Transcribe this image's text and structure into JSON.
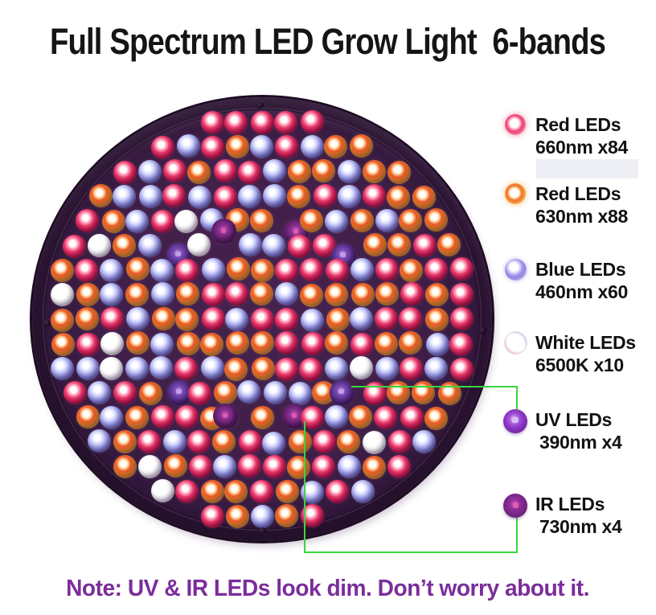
{
  "title": "Full Spectrum LED Grow Light  6-bands",
  "note": "Note: UV & IR LEDs look dim. Don’t worry about it.",
  "note_color": "#7b2d9b",
  "connector_color": "#3cd43c",
  "panel": {
    "description": "round LED grow light panel",
    "body_color": "#3a1c42"
  },
  "legend": {
    "items": [
      {
        "id": "red660",
        "label": "Red LEDs",
        "detail": "660nm x84",
        "wavelength": "660nm",
        "count": 84,
        "color": "#e8235c"
      },
      {
        "id": "red630",
        "label": "Red LEDs",
        "detail": "630nm x88",
        "wavelength": "630nm",
        "count": 88,
        "color": "#f0912e"
      },
      {
        "id": "blue",
        "label": "Blue LEDs",
        "detail": "460nm x60",
        "wavelength": "460nm",
        "count": 60,
        "color": "#8d90e0"
      },
      {
        "id": "white",
        "label": "White LEDs",
        "detail": "6500K x10",
        "wavelength": "6500K",
        "count": 10,
        "color": "#ffffff"
      },
      {
        "id": "uv",
        "label": "UV LEDs",
        "detail": "390nm x4",
        "wavelength": "390nm",
        "count": 4,
        "color": "#8c34c4"
      },
      {
        "id": "ir",
        "label": "IR LEDs",
        "detail": "730nm x4",
        "wavelength": "730nm",
        "count": 4,
        "color": "#7a2688"
      }
    ]
  }
}
